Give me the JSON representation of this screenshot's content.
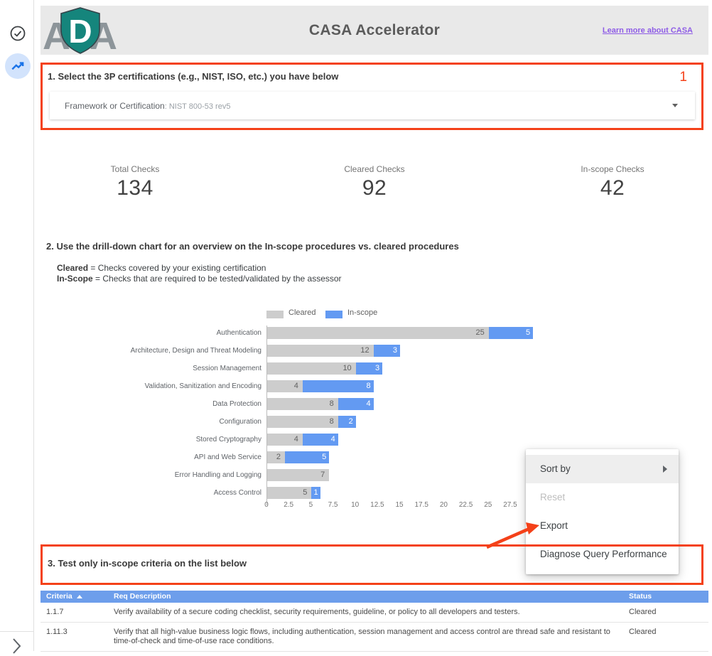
{
  "header": {
    "logo": {
      "left_letter": "A",
      "shield_letter": "D",
      "right_letter": "A"
    },
    "title": "CASA Accelerator",
    "link_label": "Learn more about CASA"
  },
  "section1": {
    "annotation_number": "1",
    "heading": "1. Select the 3P certifications (e.g., NIST, ISO, etc.) you have below",
    "dropdown": {
      "label": "Framework or Certification",
      "value": ": NIST 800-53 rev5"
    }
  },
  "scorecards": [
    {
      "label": "Total Checks",
      "value": "134"
    },
    {
      "label": "Cleared Checks",
      "value": "92"
    },
    {
      "label": "In-scope Checks",
      "value": "42"
    }
  ],
  "section2": {
    "heading": "2. Use the drill-down chart for an overview on the In-scope procedures vs. cleared procedures",
    "definitions": [
      {
        "term": "Cleared",
        "rest": " = Checks covered by your existing certification"
      },
      {
        "term": "In-Scope",
        "rest": " = Checks that are required to be tested/validated by the assessor"
      }
    ]
  },
  "chart_data": {
    "type": "bar",
    "orientation": "horizontal",
    "stacked": true,
    "legend_position": "top",
    "categories": [
      "Authentication",
      "Architecture, Design and Threat Modeling",
      "Session Management",
      "Validation, Sanitization and Encoding",
      "Data Protection",
      "Configuration",
      "Stored Cryptography",
      "API and Web Service",
      "Error Handling and Logging",
      "Access Control"
    ],
    "series": [
      {
        "name": "Cleared",
        "color": "#cdcdcd",
        "values": [
          25,
          12,
          10,
          4,
          8,
          8,
          4,
          2,
          7,
          5
        ]
      },
      {
        "name": "In-scope",
        "color": "#639af2",
        "values": [
          5,
          3,
          3,
          8,
          4,
          2,
          4,
          5,
          0,
          1
        ]
      }
    ],
    "x_ticks": [
      0,
      2.5,
      5,
      7.5,
      10,
      12.5,
      15,
      17.5,
      20,
      22.5,
      25,
      27.5
    ],
    "xlim": [
      0,
      30
    ],
    "grid": false
  },
  "menu": {
    "items": [
      {
        "label": "Sort by",
        "state": "highlighted",
        "submenu": true
      },
      {
        "label": "Reset",
        "state": "disabled",
        "submenu": false
      },
      {
        "label": "Export",
        "state": "normal",
        "submenu": false
      },
      {
        "label": "Diagnose Query Performance",
        "state": "normal",
        "submenu": false
      }
    ]
  },
  "section3": {
    "heading": "3. Test only in-scope criteria on the list below"
  },
  "table": {
    "columns": [
      "Criteria",
      "Req Description",
      "Status"
    ],
    "sorted_column": "Criteria",
    "sort_direction": "asc",
    "rows": [
      {
        "criteria": "1.1.7",
        "description": "Verify availability of a secure coding checklist, security requirements, guideline, or policy to all developers and testers.",
        "status": "Cleared"
      },
      {
        "criteria": "1.11.3",
        "description": "Verify that all high-value business logic flows, including authentication, session management and access control are thread safe and resistant to time-of-check and time-of-use race conditions.",
        "status": "Cleared"
      }
    ]
  },
  "colors": {
    "annotation_red": "#f44119",
    "bar_gray": "#cdcdcd",
    "bar_blue": "#639af2",
    "table_header_blue": "#6d9eeb",
    "link_purple": "#8e5ce6",
    "header_band_gray": "#e9e9e9",
    "nav_icon_blue": "#1a73e8",
    "nav_icon_bg": "#d2e3fc",
    "logo_teal": "#15857c"
  }
}
